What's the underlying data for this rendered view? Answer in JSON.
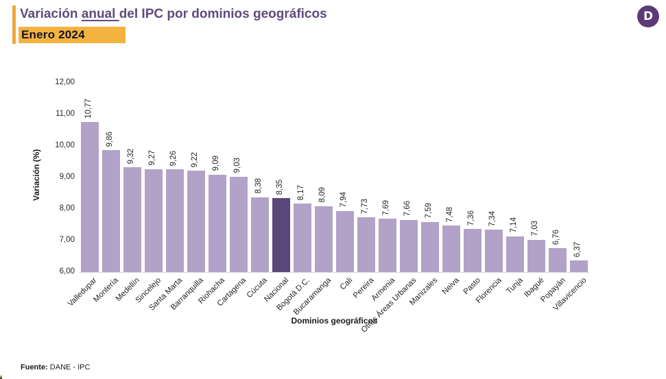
{
  "header": {
    "title_prefix": "Variación ",
    "title_underlined": "anual ",
    "title_suffix": "del IPC por dominios geográficos",
    "subtitle": "Enero 2024",
    "logo_letter": "D"
  },
  "chart_data": {
    "type": "bar",
    "title": "Variación anual del IPC por dominios geográficos — Enero 2024",
    "xlabel": "Dominios geográficos",
    "ylabel": "Variación (%)",
    "ylim": [
      6,
      12
    ],
    "ytick_step": 1,
    "ytick_labels": [
      "12,00",
      "11,00",
      "10,00",
      "9,00",
      "8,00",
      "7,00",
      "6,00"
    ],
    "grid": false,
    "legend": null,
    "categories": [
      "Valledupar",
      "Montería",
      "Medellín",
      "Sincelejo",
      "Santa Marta",
      "Barranquilla",
      "Riohacha",
      "Cartagena",
      "Cúcuta",
      "Nacional",
      "Bogotá D.C.",
      "Bucaramanga",
      "Cali",
      "Pereira",
      "Armenia",
      "Otras Áreas Urbanas",
      "Manizales",
      "Neiva",
      "Pasto",
      "Florencia",
      "Tunja",
      "Ibagué",
      "Popayán",
      "Villavicencio"
    ],
    "values": [
      10.77,
      9.86,
      9.32,
      9.27,
      9.26,
      9.22,
      9.09,
      9.03,
      8.38,
      8.35,
      8.17,
      8.09,
      7.94,
      7.73,
      7.69,
      7.66,
      7.59,
      7.48,
      7.36,
      7.34,
      7.14,
      7.03,
      6.76,
      6.37
    ],
    "value_labels": [
      "10,77",
      "9,86",
      "9,32",
      "9,27",
      "9,26",
      "9,22",
      "9,09",
      "9,03",
      "8,38",
      "8,35",
      "8,17",
      "8,09",
      "7,94",
      "7,73",
      "7,69",
      "7,66",
      "7,59",
      "7,48",
      "7,36",
      "7,34",
      "7,14",
      "7,03",
      "6,76",
      "6,37"
    ],
    "highlight_category": "Nacional",
    "highlight_index": 9,
    "bar_color": "#b2a2c8",
    "highlight_color": "#5a4679"
  },
  "footer": {
    "source_label": "Fuente:",
    "source_value": " DANE - IPC"
  },
  "colors": {
    "title_purple": "#5f4a7d",
    "accent_amber": "#efa73e",
    "subtitle_bg": "#f3b33e",
    "logo_purple": "#5c3a78",
    "axis_text": "#262626"
  }
}
